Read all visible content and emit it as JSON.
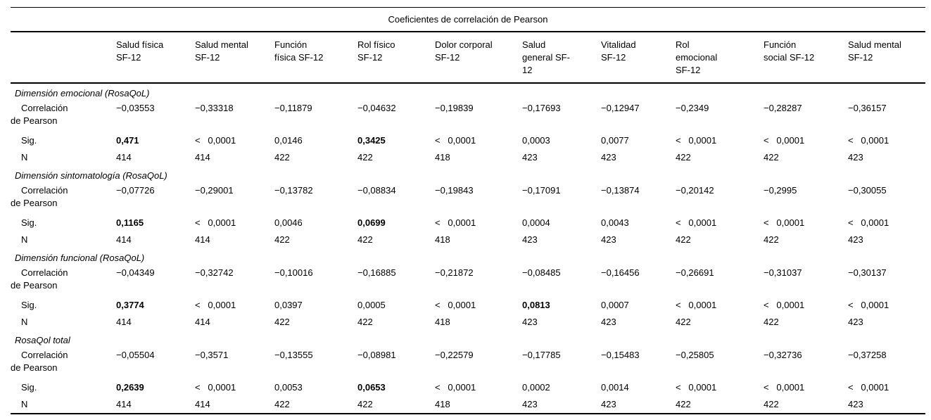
{
  "title": "Coeficientes de correlación de Pearson",
  "columns": [
    {
      "name": "Salud física SF-12",
      "lines": [
        "Salud física",
        "SF-12"
      ]
    },
    {
      "name": "Salud mental SF-12",
      "lines": [
        "Salud mental",
        "SF-12"
      ]
    },
    {
      "name": "Función física SF-12",
      "lines": [
        "Función",
        "física SF-12"
      ]
    },
    {
      "name": "Rol físico SF-12",
      "lines": [
        "Rol físico",
        "SF-12"
      ]
    },
    {
      "name": "Dolor corporal SF-12",
      "lines": [
        "Dolor corporal",
        "SF-12"
      ]
    },
    {
      "name": "Salud general SF-12",
      "lines": [
        "Salud",
        "general SF-",
        "12"
      ]
    },
    {
      "name": "Vitalidad SF-12",
      "lines": [
        "Vitalidad",
        "SF-12"
      ]
    },
    {
      "name": "Rol emocional SF-12",
      "lines": [
        "Rol",
        "emocional",
        "SF-12"
      ]
    },
    {
      "name": "Función social SF-12",
      "lines": [
        "Función",
        "social SF-12"
      ]
    },
    {
      "name": "Salud mental SF-12",
      "lines": [
        "Salud mental",
        "SF-12"
      ]
    }
  ],
  "row_labels": {
    "correlation_line1": "Correlación",
    "correlation_line2": "de Pearson",
    "sig": "Sig.",
    "n": "N"
  },
  "groups": [
    {
      "label": "Dimensión emocional (RosaQoL)",
      "correlation": [
        "−0,03553",
        "−0,33318",
        "−0,11879",
        "−0,04632",
        "−0,19839",
        "−0,17693",
        "−0,12947",
        "−0,2349",
        "−0,28287",
        "−0,36157"
      ],
      "sig": [
        {
          "v": "0,471",
          "bold": true
        },
        {
          "v": "<   0,0001",
          "bold": false
        },
        {
          "v": "0,0146",
          "bold": false
        },
        {
          "v": "0,3425",
          "bold": true
        },
        {
          "v": "<   0,0001",
          "bold": false
        },
        {
          "v": "0,0003",
          "bold": false
        },
        {
          "v": "0,0077",
          "bold": false
        },
        {
          "v": "<   0,0001",
          "bold": false
        },
        {
          "v": "<   0,0001",
          "bold": false
        },
        {
          "v": "<   0,0001",
          "bold": false
        }
      ],
      "n": [
        "414",
        "414",
        "422",
        "422",
        "418",
        "423",
        "423",
        "422",
        "422",
        "423"
      ]
    },
    {
      "label": "Dimensión sintomatología (RosaQoL)",
      "correlation": [
        "−0,07726",
        "−0,29001",
        "−0,13782",
        "−0,08834",
        "−0,19843",
        "−0,17091",
        "−0,13874",
        "−0,20142",
        "−0,2995",
        "−0,30055"
      ],
      "sig": [
        {
          "v": "0,1165",
          "bold": true
        },
        {
          "v": "<   0,0001",
          "bold": false
        },
        {
          "v": "0,0046",
          "bold": false
        },
        {
          "v": "0,0699",
          "bold": true
        },
        {
          "v": "<   0,0001",
          "bold": false
        },
        {
          "v": "0,0004",
          "bold": false
        },
        {
          "v": "0,0043",
          "bold": false
        },
        {
          "v": "<   0,0001",
          "bold": false
        },
        {
          "v": "<   0,0001",
          "bold": false
        },
        {
          "v": "<   0,0001",
          "bold": false
        }
      ],
      "n": [
        "414",
        "414",
        "422",
        "422",
        "418",
        "423",
        "423",
        "422",
        "422",
        "423"
      ]
    },
    {
      "label": "Dimensión funcional (RosaQoL)",
      "correlation": [
        "−0,04349",
        "−0,32742",
        "−0,10016",
        "−0,16885",
        "−0,21872",
        "−0,08485",
        "−0,16456",
        "−0,26691",
        "−0,31037",
        "−0,30137"
      ],
      "sig": [
        {
          "v": "0,3774",
          "bold": true
        },
        {
          "v": "<   0,0001",
          "bold": false
        },
        {
          "v": "0,0397",
          "bold": false
        },
        {
          "v": "0,0005",
          "bold": false
        },
        {
          "v": "<   0,0001",
          "bold": false
        },
        {
          "v": "0,0813",
          "bold": true
        },
        {
          "v": "0,0007",
          "bold": false
        },
        {
          "v": "<   0,0001",
          "bold": false
        },
        {
          "v": "<   0,0001",
          "bold": false
        },
        {
          "v": "<   0,0001",
          "bold": false
        }
      ],
      "n": [
        "414",
        "414",
        "422",
        "422",
        "418",
        "423",
        "423",
        "422",
        "422",
        "423"
      ]
    },
    {
      "label": "RosaQol total",
      "correlation": [
        "−0,05504",
        "−0,3571",
        "−0,13555",
        "−0,08981",
        "−0,22579",
        "−0,17785",
        "−0,15483",
        "−0,25805",
        "−0,32736",
        "−0,37258"
      ],
      "sig": [
        {
          "v": "0,2639",
          "bold": true
        },
        {
          "v": "<   0,0001",
          "bold": false
        },
        {
          "v": "0,0053",
          "bold": false
        },
        {
          "v": "0,0653",
          "bold": true
        },
        {
          "v": "<   0,0001",
          "bold": false
        },
        {
          "v": "0,0002",
          "bold": false
        },
        {
          "v": "0,0014",
          "bold": false
        },
        {
          "v": "<   0,0001",
          "bold": false
        },
        {
          "v": "<   0,0001",
          "bold": false
        },
        {
          "v": "<   0,0001",
          "bold": false
        }
      ],
      "n": [
        "414",
        "414",
        "422",
        "422",
        "418",
        "423",
        "423",
        "422",
        "422",
        "423"
      ]
    }
  ],
  "colors": {
    "text": "#000000",
    "rule": "#000000",
    "background": "#ffffff"
  }
}
